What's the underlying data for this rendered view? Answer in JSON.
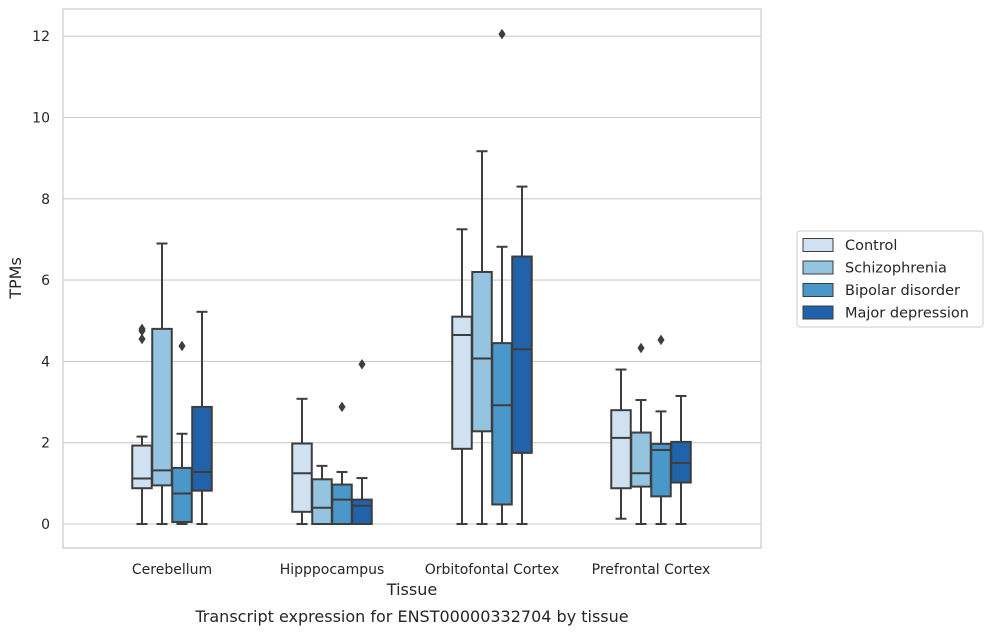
{
  "caption": "Transcript expression for ENST00000332704 by tissue",
  "chart_data": {
    "type": "box",
    "title": "",
    "xlabel": "Tissue",
    "ylabel": "TPMs",
    "ylim": [
      -0.6,
      12.65
    ],
    "yticks": [
      0,
      2,
      4,
      6,
      8,
      10,
      12
    ],
    "ytick_labels": [
      "0",
      "2",
      "4",
      "6",
      "8",
      "10",
      "12"
    ],
    "grid": "horizontal",
    "legend_position": "right",
    "categories": [
      "Cerebellum",
      "Hipppocampus",
      "Orbitofontal Cortex",
      "Prefrontal Cortex"
    ],
    "series": [
      {
        "name": "Control",
        "color": "#d0e1f2",
        "boxes": [
          {
            "whislo": 0,
            "q1": 0.88,
            "med": 1.12,
            "q3": 1.93,
            "whishi": 2.15,
            "fliers": [
              4.55,
              4.75,
              4.8
            ]
          },
          {
            "whislo": 0,
            "q1": 0.3,
            "med": 1.25,
            "q3": 1.98,
            "whishi": 3.08,
            "fliers": []
          },
          {
            "whislo": 0,
            "q1": 1.85,
            "med": 4.65,
            "q3": 5.1,
            "whishi": 7.25,
            "fliers": []
          },
          {
            "whislo": 0.13,
            "q1": 0.88,
            "med": 2.12,
            "q3": 2.8,
            "whishi": 3.8,
            "fliers": []
          }
        ]
      },
      {
        "name": "Schizophrenia",
        "color": "#94c4df",
        "boxes": [
          {
            "whislo": 0,
            "q1": 0.95,
            "med": 1.32,
            "q3": 4.8,
            "whishi": 6.9,
            "fliers": []
          },
          {
            "whislo": 0,
            "q1": 0,
            "med": 0.4,
            "q3": 1.1,
            "whishi": 1.43,
            "fliers": []
          },
          {
            "whislo": 0,
            "q1": 2.28,
            "med": 4.07,
            "q3": 6.2,
            "whishi": 9.17,
            "fliers": []
          },
          {
            "whislo": 0,
            "q1": 0.92,
            "med": 1.25,
            "q3": 2.25,
            "whishi": 3.05,
            "fliers": [
              4.33
            ]
          }
        ]
      },
      {
        "name": "Bipolar disorder",
        "color": "#4a98c9",
        "boxes": [
          {
            "whislo": 0,
            "q1": 0.05,
            "med": 0.75,
            "q3": 1.38,
            "whishi": 2.22,
            "fliers": [
              4.38
            ]
          },
          {
            "whislo": 0,
            "q1": 0,
            "med": 0.6,
            "q3": 0.97,
            "whishi": 1.28,
            "fliers": [
              2.88
            ]
          },
          {
            "whislo": 0,
            "q1": 0.48,
            "med": 2.92,
            "q3": 4.45,
            "whishi": 6.82,
            "fliers": [
              12.05
            ]
          },
          {
            "whislo": 0,
            "q1": 0.68,
            "med": 1.82,
            "q3": 1.97,
            "whishi": 2.77,
            "fliers": [
              4.53
            ]
          }
        ]
      },
      {
        "name": "Major depression",
        "color": "#2163aa",
        "boxes": [
          {
            "whislo": 0,
            "q1": 0.82,
            "med": 1.28,
            "q3": 2.88,
            "whishi": 5.22,
            "fliers": []
          },
          {
            "whislo": 0,
            "q1": 0,
            "med": 0.45,
            "q3": 0.6,
            "whishi": 1.13,
            "fliers": [
              3.93
            ]
          },
          {
            "whislo": 0,
            "q1": 1.75,
            "med": 4.3,
            "q3": 6.58,
            "whishi": 8.3,
            "fliers": []
          },
          {
            "whislo": 0,
            "q1": 1.02,
            "med": 1.5,
            "q3": 2.02,
            "whishi": 3.15,
            "fliers": []
          }
        ]
      }
    ]
  }
}
